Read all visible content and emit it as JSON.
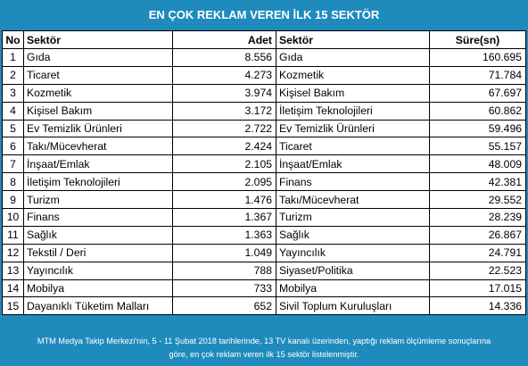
{
  "title": "EN ÇOK REKLAM VEREN İLK 15 SEKTÖR",
  "columns": {
    "no": "No",
    "sector_by_count": "Sektör",
    "count": "Adet",
    "sector_by_duration": "Sektör",
    "duration": "Süre(sn)"
  },
  "rows": [
    {
      "no": "1",
      "sector_a": "Gıda",
      "count": "8.556",
      "sector_b": "Gıda",
      "duration": "160.695"
    },
    {
      "no": "2",
      "sector_a": "Ticaret",
      "count": "4.273",
      "sector_b": "Kozmetik",
      "duration": "71.784"
    },
    {
      "no": "3",
      "sector_a": "Kozmetik",
      "count": "3.974",
      "sector_b": "Kişisel Bakım",
      "duration": "67.697"
    },
    {
      "no": "4",
      "sector_a": "Kişisel Bakım",
      "count": "3.172",
      "sector_b": "İletişim Teknolojileri",
      "duration": "60.862"
    },
    {
      "no": "5",
      "sector_a": "Ev Temizlik Ürünleri",
      "count": "2.722",
      "sector_b": "Ev Temizlik Ürünleri",
      "duration": "59.496"
    },
    {
      "no": "6",
      "sector_a": "Takı/Mücevherat",
      "count": "2.424",
      "sector_b": "Ticaret",
      "duration": "55.157"
    },
    {
      "no": "7",
      "sector_a": "İnşaat/Emlak",
      "count": "2.105",
      "sector_b": "İnşaat/Emlak",
      "duration": "48.009"
    },
    {
      "no": "8",
      "sector_a": "İletişim Teknolojileri",
      "count": "2.095",
      "sector_b": "Finans",
      "duration": "42.381"
    },
    {
      "no": "9",
      "sector_a": "Turizm",
      "count": "1.476",
      "sector_b": "Takı/Mücevherat",
      "duration": "29.552"
    },
    {
      "no": "10",
      "sector_a": "Finans",
      "count": "1.367",
      "sector_b": "Turizm",
      "duration": "28.239"
    },
    {
      "no": "11",
      "sector_a": "Sağlık",
      "count": "1.363",
      "sector_b": "Sağlık",
      "duration": "26.867"
    },
    {
      "no": "12",
      "sector_a": "Tekstil / Deri",
      "count": "1.049",
      "sector_b": "Yayıncılık",
      "duration": "24.791"
    },
    {
      "no": "13",
      "sector_a": "Yayıncılık",
      "count": "788",
      "sector_b": "Siyaset/Politika",
      "duration": "22.523"
    },
    {
      "no": "14",
      "sector_a": "Mobilya",
      "count": "733",
      "sector_b": "Mobilya",
      "duration": "17.015"
    },
    {
      "no": "15",
      "sector_a": "Dayanıklı Tüketim Malları",
      "count": "652",
      "sector_b": "Sivil Toplum Kuruluşları",
      "duration": "14.336"
    }
  ],
  "footer": {
    "line1": "MTM Medya Takip Merkezi'nin, 5 - 11 Şubat 2018 tarihlerinde, 13 TV kanalı üzerinden,  yaptığı reklam ölçümleme sonuçlarına",
    "line2": "göre, en çok reklam veren ilk 15 sektör  listelenmiştir."
  },
  "colors": {
    "background": "#1f8bbd",
    "table_background": "#ffffff",
    "text_on_background": "#ffffff"
  }
}
